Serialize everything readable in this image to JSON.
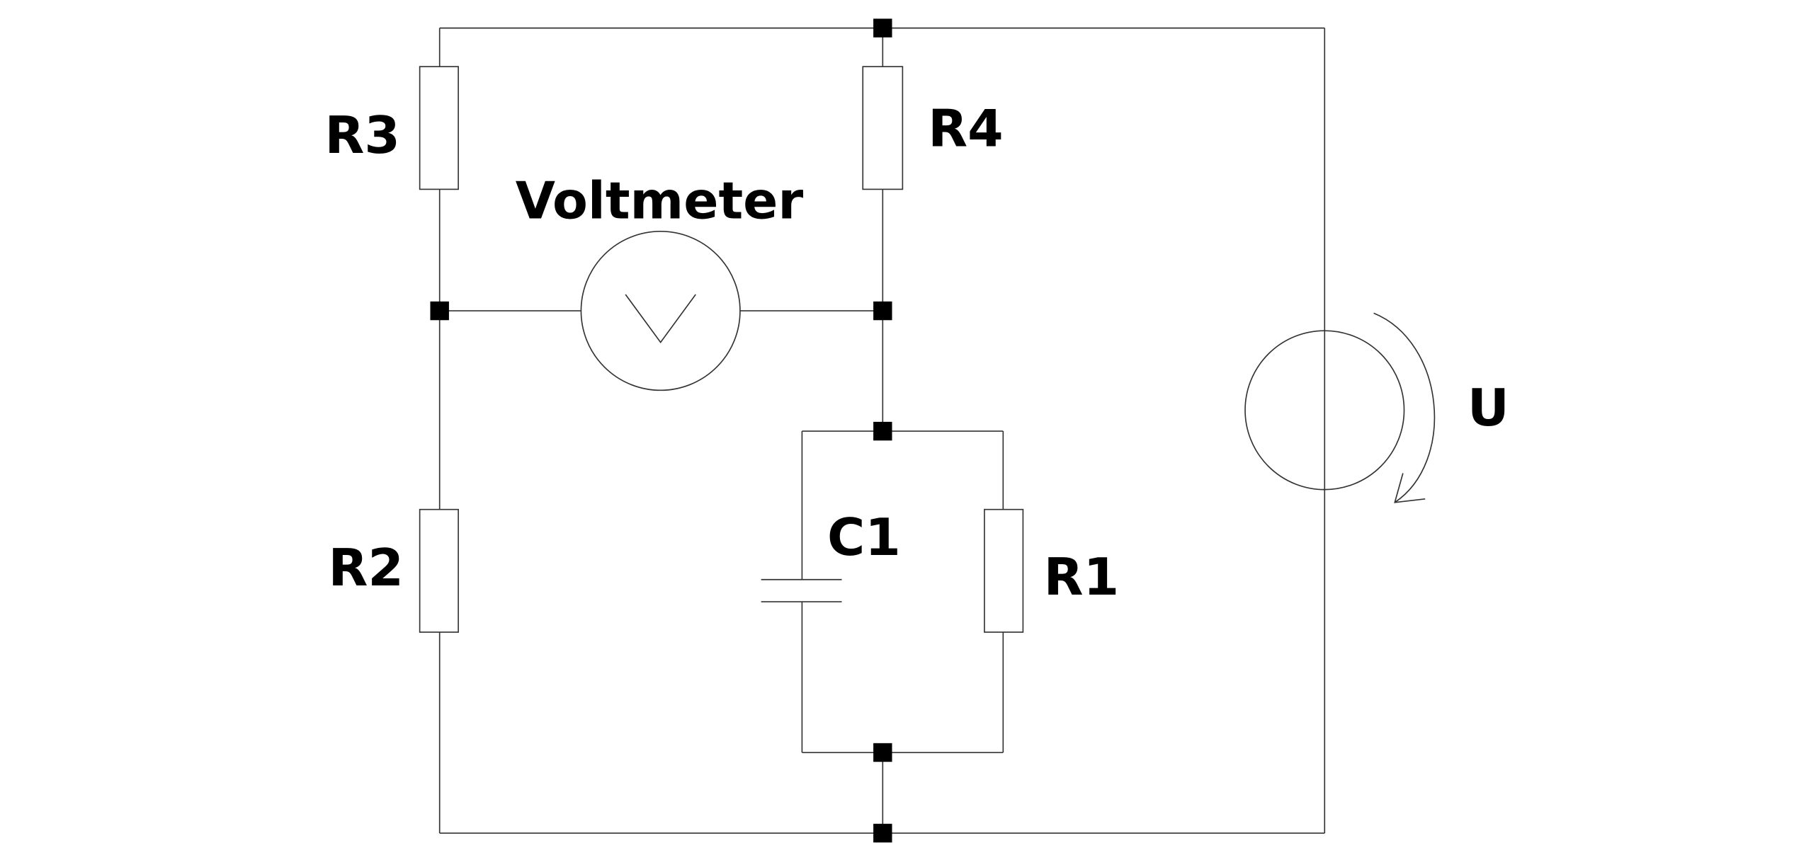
{
  "labels": {
    "r1": "R1",
    "r2": "R2",
    "r3": "R3",
    "r4": "R4",
    "c1": "C1",
    "voltmeter": "Voltmeter",
    "source": "U"
  },
  "colors": {
    "line": "#333333",
    "node": "#000000",
    "background": "#ffffff"
  }
}
